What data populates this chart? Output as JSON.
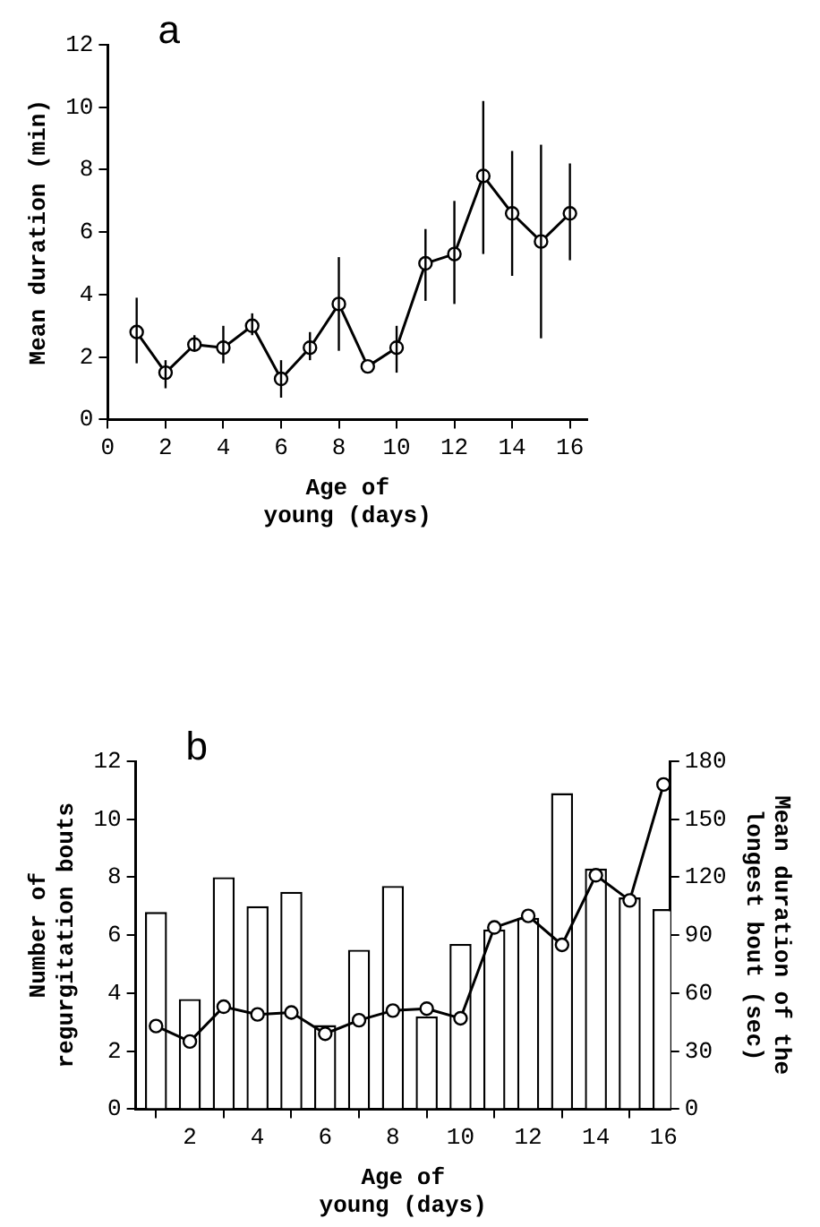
{
  "chart_data": [
    {
      "type": "line",
      "title": "a",
      "xlabel": "Age of young (days)",
      "ylabel": "Mean duration (min)",
      "x": [
        1,
        2,
        3,
        4,
        5,
        6,
        7,
        8,
        9,
        10,
        11,
        12,
        13,
        14,
        15,
        16
      ],
      "series": [
        {
          "color": "#000000",
          "values": [
            2.8,
            1.5,
            2.4,
            2.3,
            3.0,
            1.3,
            2.3,
            3.7,
            1.7,
            2.3,
            5.0,
            5.3,
            7.8,
            6.6,
            5.7,
            6.6
          ],
          "errors": [
            [
              1.8,
              3.9
            ],
            [
              1.0,
              1.9
            ],
            [
              2.2,
              2.7
            ],
            [
              1.8,
              3.0
            ],
            [
              2.7,
              3.4
            ],
            [
              0.7,
              1.9
            ],
            [
              1.9,
              2.8
            ],
            [
              2.2,
              5.2
            ],
            null,
            [
              1.5,
              3.0
            ],
            [
              3.8,
              6.1
            ],
            [
              3.7,
              7.0
            ],
            [
              5.3,
              10.2
            ],
            [
              4.6,
              8.6
            ],
            [
              2.6,
              8.8
            ],
            [
              5.1,
              8.2
            ]
          ]
        }
      ],
      "xlim": [
        0,
        16.6
      ],
      "xticks": [
        0,
        2,
        4,
        6,
        8,
        10,
        12,
        14,
        16
      ],
      "ylim": [
        0,
        12
      ],
      "yticks": [
        0,
        2,
        4,
        6,
        8,
        10,
        12
      ],
      "marker": "circle",
      "grid": false,
      "legend": false
    },
    {
      "type": "bar",
      "title": "b",
      "xlabel": "Age of young (days)",
      "ylabel": "Number of regurgitation bouts",
      "y2label": "Mean duration of the longest bout (sec)",
      "x": [
        1,
        2,
        3,
        4,
        5,
        6,
        7,
        8,
        9,
        10,
        11,
        12,
        13,
        14,
        15,
        16
      ],
      "series": [
        {
          "type": "bar",
          "color": "#ffffff",
          "values": [
            6.8,
            3.8,
            8.0,
            7.0,
            7.5,
            2.9,
            5.5,
            7.7,
            3.2,
            5.7,
            6.2,
            6.6,
            10.9,
            8.3,
            7.3,
            6.9
          ]
        },
        {
          "type": "line",
          "axis": "y2",
          "color": "#000000",
          "values": [
            43,
            35,
            53,
            49,
            50,
            39,
            46,
            51,
            52,
            47,
            94,
            100,
            85,
            121,
            108,
            168
          ]
        }
      ],
      "xlim": [
        0.4,
        16.2
      ],
      "xticks": [
        2,
        4,
        6,
        8,
        10,
        12,
        14,
        16
      ],
      "ylim": [
        0,
        12
      ],
      "yticks": [
        0,
        2,
        4,
        6,
        8,
        10,
        12
      ],
      "y2lim": [
        0,
        180
      ],
      "y2ticks": [
        0,
        30,
        60,
        90,
        120,
        150,
        180
      ],
      "marker": "circle",
      "grid": false,
      "legend": false
    }
  ]
}
